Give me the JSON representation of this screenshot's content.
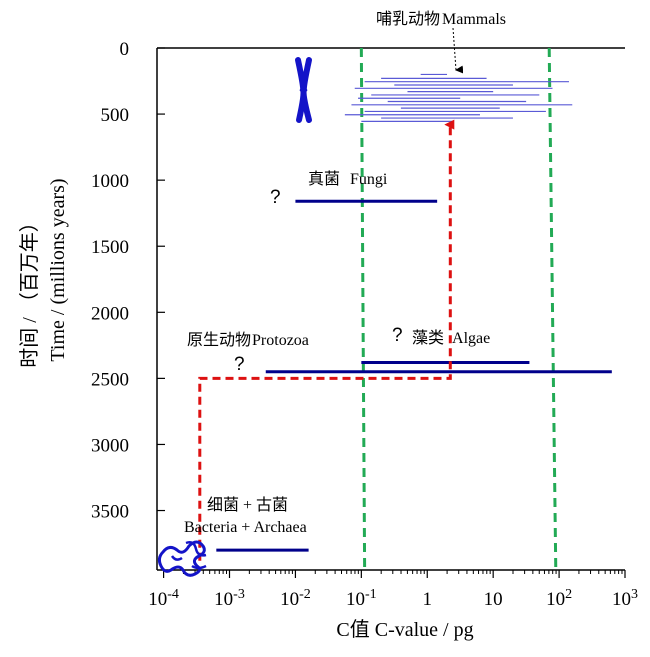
{
  "chart_data": {
    "type": "line",
    "title": "",
    "xlabel": "C值 C-value / pg",
    "ylabel_cn": "时间 / （百万年）",
    "ylabel_en": "Time / (millions years)",
    "xscale": "log10",
    "xlim": [
      -4.1,
      3
    ],
    "ylim": [
      0,
      3950
    ],
    "x_ticks": [
      {
        "base": "10",
        "exp": "-4",
        "value": -4
      },
      {
        "base": "10",
        "exp": "-3",
        "value": -3
      },
      {
        "base": "10",
        "exp": "-2",
        "value": -2
      },
      {
        "base": "10",
        "exp": "-1",
        "value": -1
      },
      {
        "base": "1",
        "exp": "",
        "value": 0
      },
      {
        "base": "10",
        "exp": "",
        "value": 1
      },
      {
        "base": "10",
        "exp": "2",
        "value": 2
      },
      {
        "base": "10",
        "exp": "3",
        "value": 3
      }
    ],
    "y_ticks": [
      "0",
      "500",
      "1000",
      "1500",
      "2000",
      "2500",
      "3000",
      "3500"
    ],
    "y_tick_values": [
      0,
      500,
      1000,
      1500,
      2000,
      2500,
      3000,
      3500
    ],
    "groups": [
      {
        "name": "bacteria",
        "label_cn": "细菌 + 古菌",
        "label_en": "Bacteria + Archaea",
        "time": 3800,
        "log_c_range": [
          -3.2,
          -1.8
        ],
        "uncertain": false
      },
      {
        "name": "protozoa",
        "label_cn": "原生动物",
        "label_en": "Protozoa",
        "time": 2450,
        "log_c_range": [
          -2.45,
          2.8
        ],
        "uncertain": true
      },
      {
        "name": "algae",
        "label_cn": "藻类",
        "label_en": "Algae",
        "time": 2380,
        "log_c_range": [
          -1.0,
          1.55
        ],
        "uncertain": true
      },
      {
        "name": "fungi",
        "label_cn": "真菌",
        "label_en": "Fungi",
        "time": 1160,
        "log_c_range": [
          -2.0,
          0.15
        ],
        "uncertain": true
      },
      {
        "name": "mammals",
        "label_cn": "哺乳动物",
        "label_en": "Mammals",
        "time_range": [
          200,
          560
        ],
        "log_c_range": [
          -1.2,
          2.2
        ],
        "uncertain": false
      }
    ],
    "mammal_lines": [
      {
        "time": 200,
        "log_c": [
          -0.1,
          0.3
        ]
      },
      {
        "time": 230,
        "log_c": [
          -0.7,
          0.9
        ]
      },
      {
        "time": 255,
        "log_c": [
          -0.95,
          2.15
        ]
      },
      {
        "time": 280,
        "log_c": [
          -0.5,
          1.3
        ]
      },
      {
        "time": 305,
        "log_c": [
          -1.1,
          1.9
        ]
      },
      {
        "time": 330,
        "log_c": [
          -0.3,
          1.0
        ]
      },
      {
        "time": 355,
        "log_c": [
          -0.85,
          1.7
        ]
      },
      {
        "time": 380,
        "log_c": [
          -1.05,
          0.5
        ]
      },
      {
        "time": 405,
        "log_c": [
          -0.6,
          1.5
        ]
      },
      {
        "time": 430,
        "log_c": [
          -1.15,
          2.2
        ]
      },
      {
        "time": 455,
        "log_c": [
          -0.4,
          1.1
        ]
      },
      {
        "time": 480,
        "log_c": [
          -0.95,
          1.8
        ]
      },
      {
        "time": 505,
        "log_c": [
          -1.25,
          0.8
        ]
      },
      {
        "time": 530,
        "log_c": [
          -0.7,
          1.3
        ]
      },
      {
        "time": 555,
        "log_c": [
          -1.0,
          0.4
        ]
      }
    ],
    "green_boundaries": [
      {
        "log_c": [
          -1.0,
          -0.95
        ],
        "time": [
          0,
          3950
        ]
      },
      {
        "log_c": [
          1.85,
          1.95
        ],
        "time": [
          0,
          3950
        ]
      }
    ],
    "red_path": [
      {
        "log_c": -3.45,
        "time": 3880
      },
      {
        "log_c": -3.45,
        "time": 2500
      },
      {
        "log_c": 0.35,
        "time": 2500
      },
      {
        "log_c": 0.35,
        "time": 580
      }
    ],
    "uncertain_mark": "?",
    "colors": {
      "axis": "#000000",
      "group_line": "#00008b",
      "mammal_line": "#5a5ad6",
      "boundary": "#22aa55",
      "red_path": "#dd1111",
      "icon": "#1414c8"
    }
  }
}
